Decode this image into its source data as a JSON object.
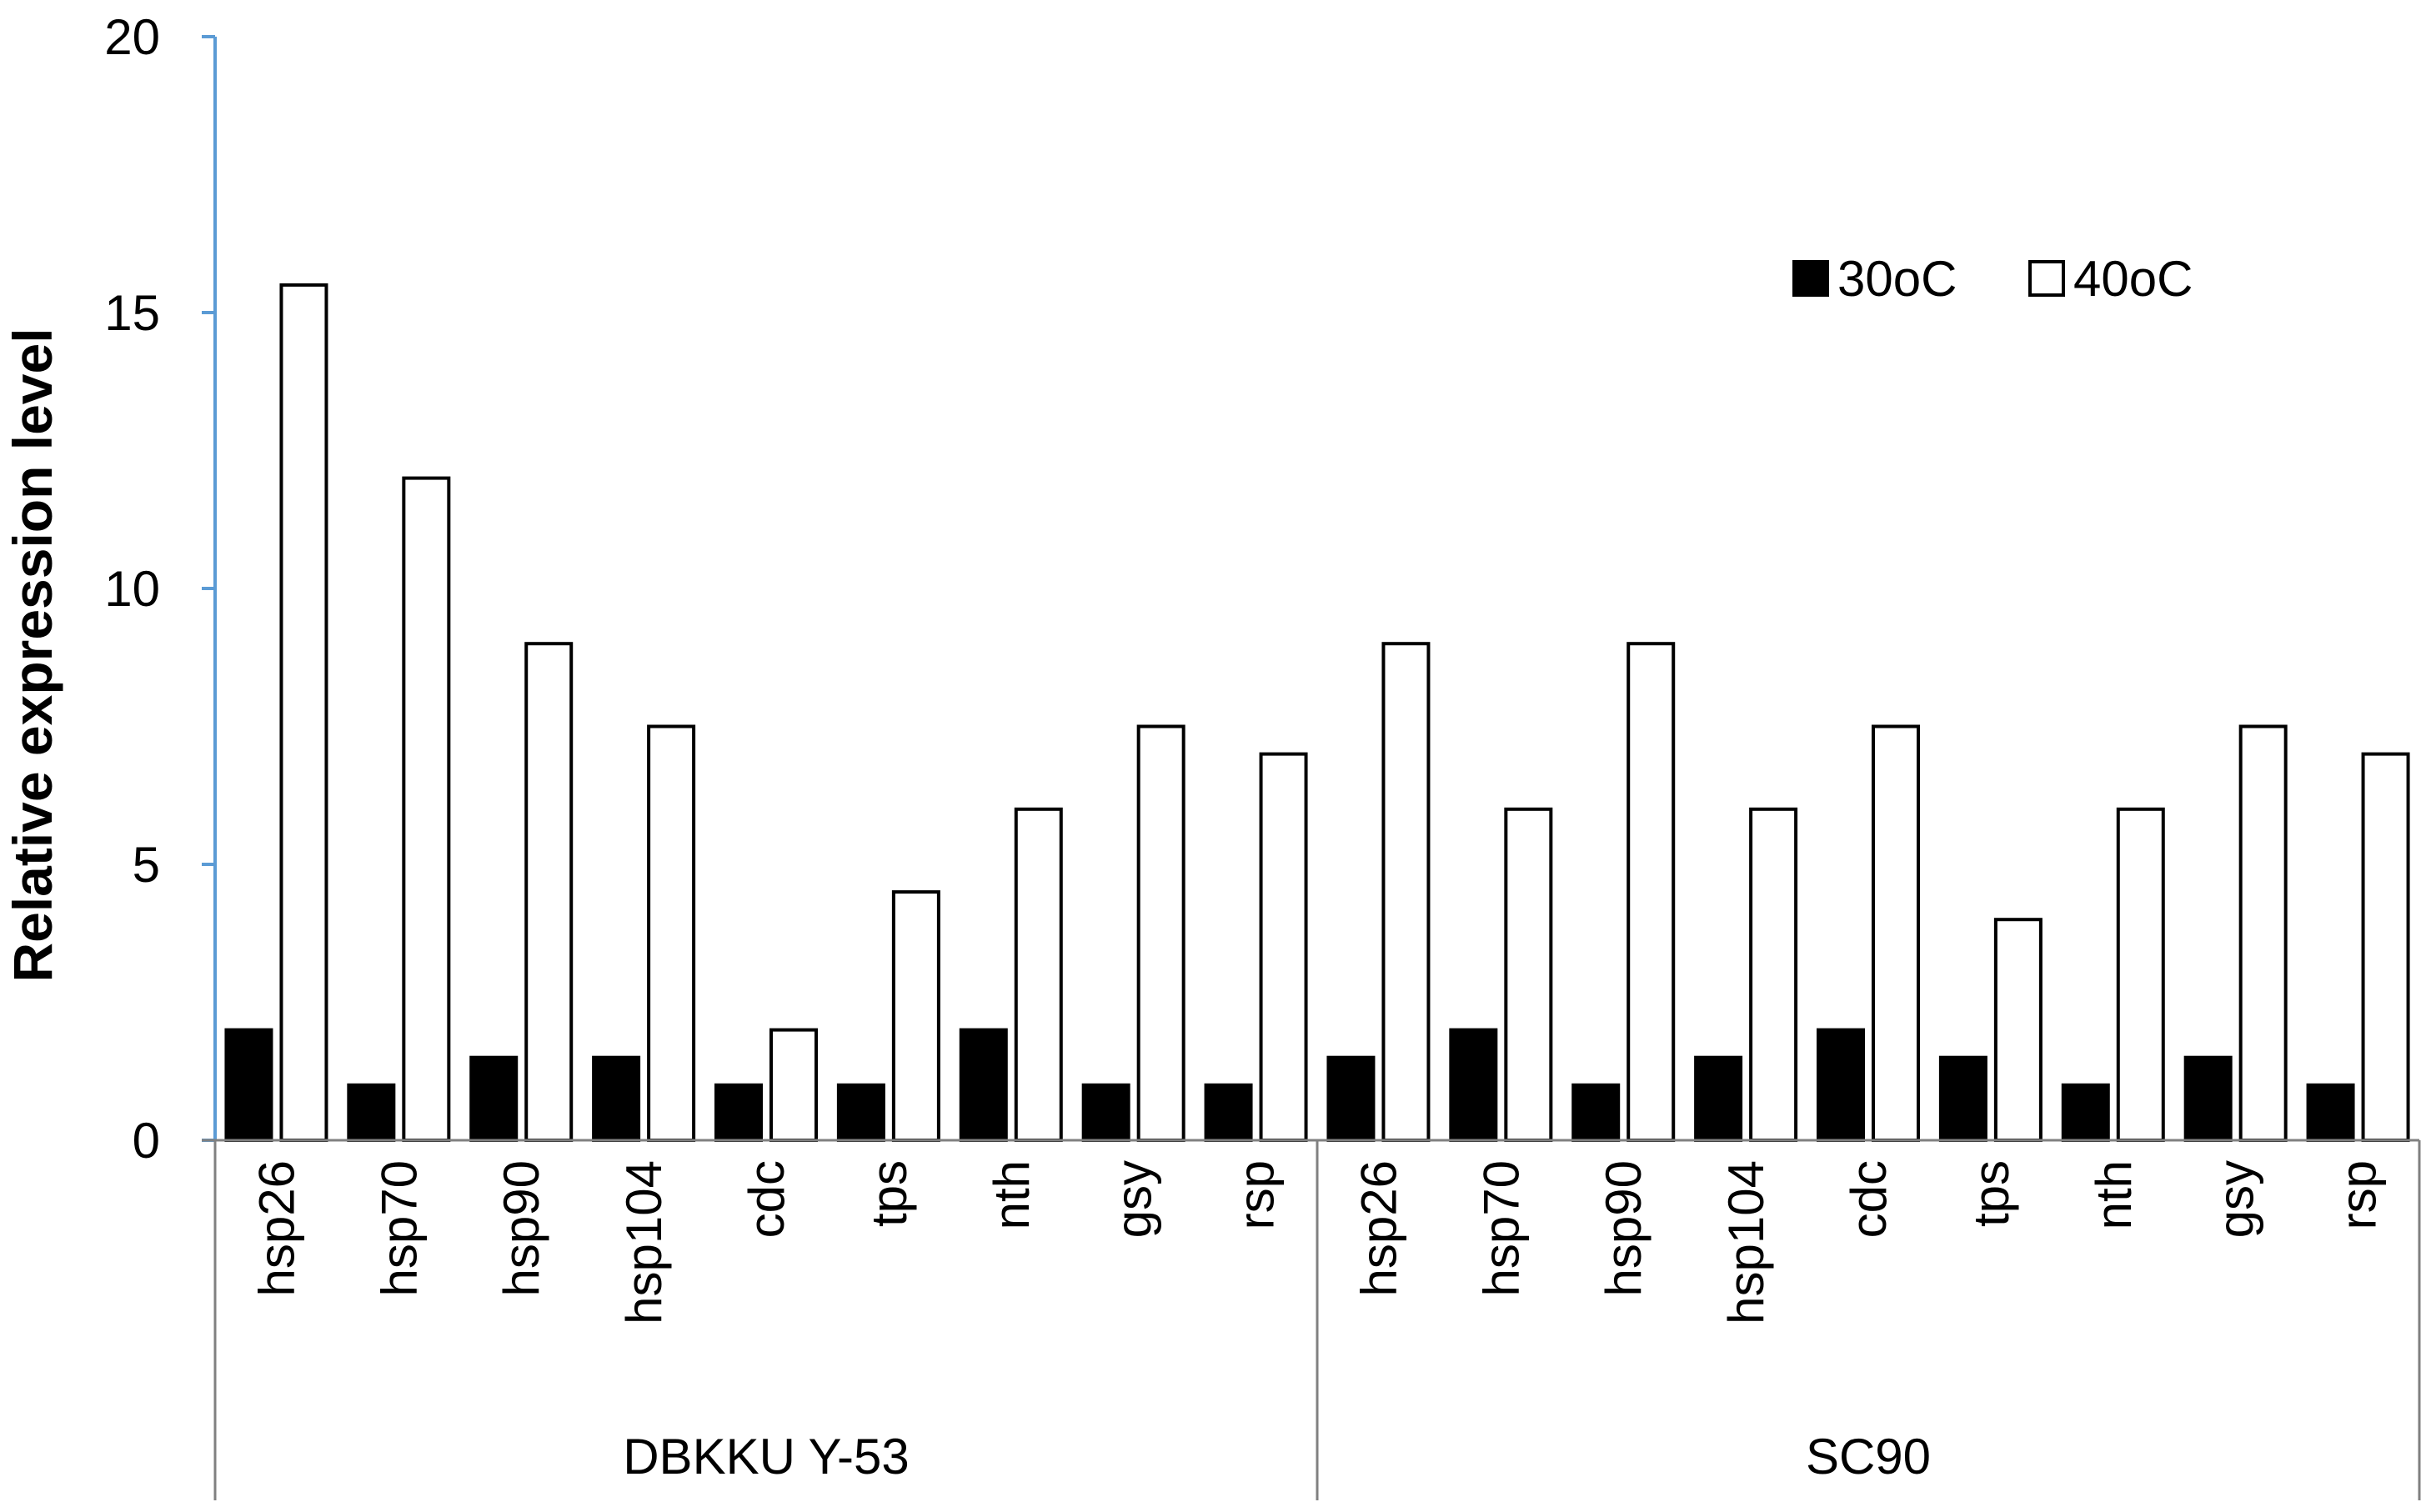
{
  "chart_data": {
    "type": "bar",
    "ylabel": "Relative expression level",
    "xlabel": "",
    "ylim": [
      0,
      20
    ],
    "yticks": [
      "0",
      "5",
      "10",
      "15",
      "20"
    ],
    "grid": false,
    "legend_position": "top-right",
    "groups": [
      {
        "name": "DBKKU Y-53",
        "categories": [
          "hsp26",
          "hsp70",
          "hsp90",
          "hsp104",
          "cdc",
          "tps",
          "nth",
          "gsy",
          "rsp"
        ]
      },
      {
        "name": "SC90",
        "categories": [
          "hsp26",
          "hsp70",
          "hsp90",
          "hsp104",
          "cdc",
          "tps",
          "nth",
          "gsy",
          "rsp"
        ]
      }
    ],
    "series": [
      {
        "name": "30oC",
        "fill": "#000000",
        "values": [
          2.0,
          1.0,
          1.5,
          1.5,
          1.0,
          1.0,
          2.0,
          1.0,
          1.0,
          1.5,
          2.0,
          1.0,
          1.5,
          2.0,
          1.5,
          1.0,
          1.5,
          1.0
        ]
      },
      {
        "name": "40oC",
        "fill": "#ffffff",
        "values": [
          15.5,
          12.0,
          9.0,
          7.5,
          2.0,
          4.5,
          6.0,
          7.5,
          7.0,
          9.0,
          6.0,
          9.0,
          6.0,
          7.5,
          4.0,
          6.0,
          7.5,
          7.0
        ]
      }
    ],
    "colors": {
      "y_axis": "#5b9bd5",
      "x_axis": "#808080",
      "bar_outline": "#000000"
    }
  }
}
